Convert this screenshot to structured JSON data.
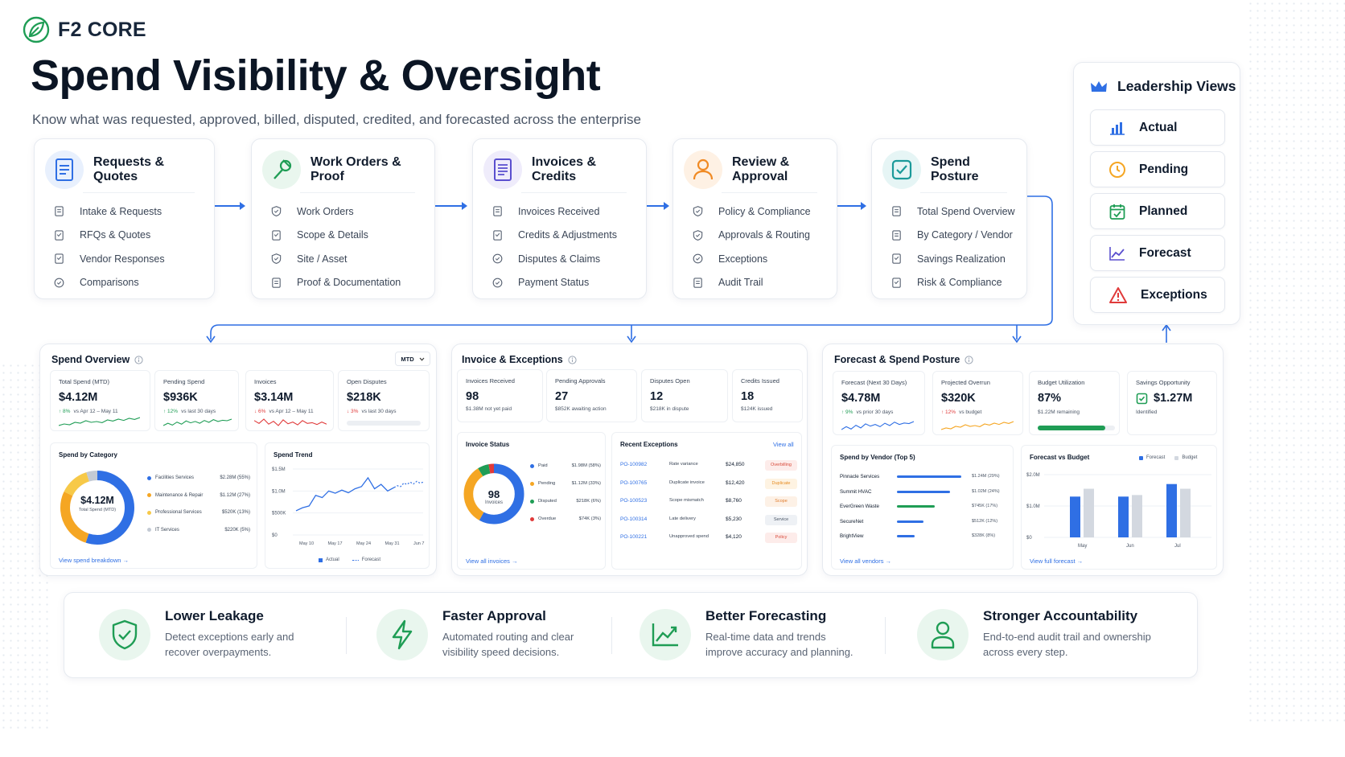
{
  "brand": {
    "name": "F2 CORE"
  },
  "header": {
    "title": "Spend Visibility & Oversight",
    "subtitle": "Know what was requested, approved, billed, disputed, credited, and forecasted across the enterprise"
  },
  "stages": [
    {
      "title": "Requests & Quotes",
      "items": [
        "Intake & Requests",
        "RFQs & Quotes",
        "Vendor Responses",
        "Comparisons"
      ]
    },
    {
      "title": "Work Orders & Proof",
      "items": [
        "Work Orders",
        "Scope & Details",
        "Site / Asset",
        "Proof & Documentation"
      ]
    },
    {
      "title": "Invoices & Credits",
      "items": [
        "Invoices Received",
        "Credits & Adjustments",
        "Disputes & Claims",
        "Payment Status"
      ]
    },
    {
      "title": "Review & Approval",
      "items": [
        "Policy & Compliance",
        "Approvals & Routing",
        "Exceptions",
        "Audit Trail"
      ]
    },
    {
      "title": "Spend Posture",
      "items": [
        "Total Spend Overview",
        "By Category / Vendor",
        "Savings Realization",
        "Risk & Compliance"
      ]
    }
  ],
  "leadership": {
    "title": "Leadership Views",
    "items": [
      "Actual",
      "Pending",
      "Planned",
      "Forecast",
      "Exceptions"
    ]
  },
  "spend_overview": {
    "title": "Spend Overview",
    "period": "MTD",
    "kpis": [
      {
        "label": "Total Spend (MTD)",
        "value": "$4.12M",
        "delta": "↑ 8%",
        "note": "vs Apr 12 – May 11"
      },
      {
        "label": "Pending Spend",
        "value": "$936K",
        "delta": "↑ 12%",
        "note": "vs last 30 days"
      },
      {
        "label": "Invoices",
        "value": "$3.14M",
        "delta": "↓ 6%",
        "note": "vs Apr 12 – May 11"
      },
      {
        "label": "Open Disputes",
        "value": "$218K",
        "delta": "↓ 3%",
        "note": "vs last 30 days"
      }
    ],
    "category": {
      "title": "Spend by Category",
      "center_value": "$4.12M",
      "center_label": "Total Spend (MTD)",
      "link": "View spend breakdown →",
      "items": [
        {
          "name": "Facilities Services",
          "value": "$2.28M (55%)",
          "share": 55,
          "color": "#2f6fe4"
        },
        {
          "name": "Maintenance & Repair",
          "value": "$1.12M (27%)",
          "share": 27,
          "color": "#f5a623"
        },
        {
          "name": "Professional Services",
          "value": "$520K (13%)",
          "share": 13,
          "color": "#f7c948"
        },
        {
          "name": "IT Services",
          "value": "$220K (5%)",
          "share": 5,
          "color": "#c3cad4"
        }
      ]
    },
    "trend": {
      "title": "Spend Trend",
      "y_ticks": [
        "$1.5M",
        "$1.0M",
        "$500K",
        "$0"
      ],
      "x_ticks": [
        "May 10",
        "May 17",
        "May 24",
        "May 31",
        "Jun 7"
      ],
      "legend": [
        "Actual",
        "Forecast"
      ],
      "actual": [
        0.55,
        0.62,
        0.66,
        0.9,
        0.85,
        1.0,
        0.95,
        1.02,
        0.96,
        1.05,
        1.1,
        1.3,
        1.05,
        1.15,
        1.0,
        1.08
      ],
      "forecast": [
        1.08,
        1.12,
        1.1,
        1.18,
        1.15,
        1.2,
        1.16,
        1.22,
        1.18,
        1.2
      ]
    }
  },
  "invoice_exceptions": {
    "title": "Invoice & Exceptions",
    "kpis": [
      {
        "label": "Invoices Received",
        "value": "98",
        "note": "$1.38M not yet paid"
      },
      {
        "label": "Pending Approvals",
        "value": "27",
        "note": "$852K awaiting action"
      },
      {
        "label": "Disputes Open",
        "value": "12",
        "note": "$218K in dispute"
      },
      {
        "label": "Credits Issued",
        "value": "18",
        "note": "$124K  issued"
      }
    ],
    "status": {
      "title": "Invoice Status",
      "center_value": "98",
      "center_label": "Invoices",
      "link": "View all invoices →",
      "items": [
        {
          "name": "Paid",
          "value": "$1.98M (58%)",
          "share": 58,
          "color": "#2f6fe4"
        },
        {
          "name": "Pending",
          "value": "$1.12M (33%)",
          "share": 33,
          "color": "#f5a623"
        },
        {
          "name": "Disputed",
          "value": "$218K (6%)",
          "share": 6,
          "color": "#1f9d55"
        },
        {
          "name": "Overdue",
          "value": "$74K (3%)",
          "share": 3,
          "color": "#e03a3a"
        }
      ]
    },
    "exceptions": {
      "title": "Recent Exceptions",
      "link": "View all",
      "rows": [
        {
          "id": "PO-100982",
          "reason": "Rate variance",
          "amount": "$24,850",
          "tag": "Overbilling",
          "bg": "#fdecea",
          "fg": "#d84a3a"
        },
        {
          "id": "PO-100765",
          "reason": "Duplicate invoice",
          "amount": "$12,420",
          "tag": "Duplicate",
          "bg": "#fef3e2",
          "fg": "#e58a1f"
        },
        {
          "id": "PO-100523",
          "reason": "Scope mismatch",
          "amount": "$8,760",
          "tag": "Scope",
          "bg": "#fdf1e6",
          "fg": "#e07b2b"
        },
        {
          "id": "PO-100314",
          "reason": "Late delivery",
          "amount": "$5,230",
          "tag": "Service",
          "bg": "#eef1f5",
          "fg": "#4b5666"
        },
        {
          "id": "PO-100221",
          "reason": "Unapproved spend",
          "amount": "$4,120",
          "tag": "Policy",
          "bg": "#fdecea",
          "fg": "#d84a3a"
        }
      ]
    }
  },
  "forecast_posture": {
    "title": "Forecast & Spend Posture",
    "kpis": [
      {
        "label": "Forecast (Next 30 Days)",
        "value": "$4.78M",
        "delta": "↑ 9%",
        "note": "vs prior 30 days"
      },
      {
        "label": "Projected Overrun",
        "value": "$320K",
        "delta": "↑ 12%",
        "note": "vs budget"
      },
      {
        "label": "Budget Utilization",
        "value": "87%",
        "note": "$1.22M remaining",
        "progress": 0.87
      },
      {
        "label": "Savings Opportunity",
        "value": "$1.27M",
        "note": "Identified"
      }
    ],
    "vendors": {
      "title": "Spend by Vendor (Top 5)",
      "link": "View all vendors →",
      "rows": [
        {
          "name": "Pinnacle Services",
          "value": "$1.24M (29%)",
          "share": 29,
          "color": "#2f6fe4"
        },
        {
          "name": "Summit HVAC",
          "value": "$1.02M (24%)",
          "share": 24,
          "color": "#2f6fe4"
        },
        {
          "name": "EverGreen Waste",
          "value": "$745K (17%)",
          "share": 17,
          "color": "#1f9d55"
        },
        {
          "name": "SecureNet",
          "value": "$512K (12%)",
          "share": 12,
          "color": "#2f6fe4"
        },
        {
          "name": "BrightView",
          "value": "$328K (8%)",
          "share": 8,
          "color": "#2f6fe4"
        }
      ]
    },
    "fvb": {
      "title": "Forecast vs Budget",
      "legend": [
        "Forecast",
        "Budget"
      ],
      "y_ticks": [
        "$2.0M",
        "$1.0M",
        "$0"
      ],
      "categories": [
        "May",
        "Jun",
        "Jul"
      ],
      "forecast": [
        1.3,
        1.3,
        1.7
      ],
      "budget": [
        1.55,
        1.35,
        1.55
      ],
      "link": "View full forecast →"
    }
  },
  "benefits": [
    {
      "title": "Lower Leakage",
      "desc": "Detect exceptions early and recover overpayments."
    },
    {
      "title": "Faster Approval",
      "desc": "Automated routing and clear visibility speed decisions."
    },
    {
      "title": "Better Forecasting",
      "desc": "Real-time data and trends improve accuracy and planning."
    },
    {
      "title": "Stronger Accountability",
      "desc": "End-to-end audit trail and ownership across every step."
    }
  ],
  "colors": {
    "accent": "#2f6fe4",
    "green": "#1f9d55",
    "red": "#e03a3a",
    "orange": "#f5a623"
  }
}
